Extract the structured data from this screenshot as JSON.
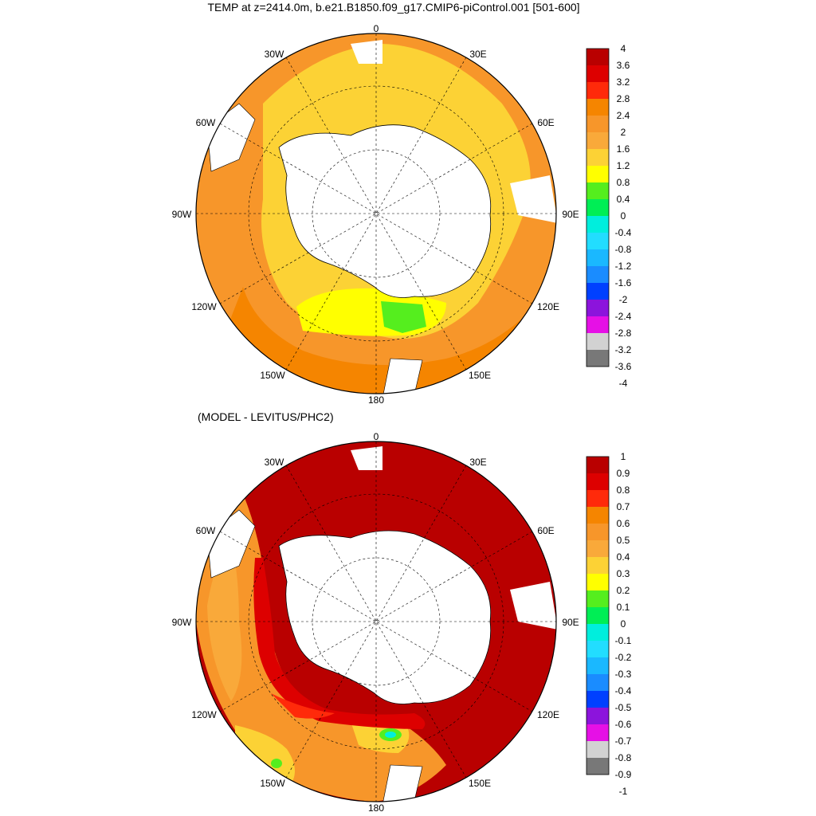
{
  "top_panel": {
    "title": "TEMP at z=2414.0m, b.e21.B1850.f09_g17.CMIP6-piControl.001 [501-600]",
    "lon_labels": [
      "0",
      "30E",
      "60E",
      "90E",
      "120E",
      "150E",
      "180",
      "150W",
      "120W",
      "90W",
      "60W",
      "30W"
    ],
    "colorbar": {
      "labels": [
        "4",
        "3.6",
        "3.2",
        "2.8",
        "2.4",
        "2",
        "1.6",
        "1.2",
        "0.8",
        "0.4",
        "0",
        "-0.4",
        "-0.8",
        "-1.2",
        "-1.6",
        "-2",
        "-2.4",
        "-2.8",
        "-3.2",
        "-3.6",
        "-4"
      ]
    }
  },
  "bottom_panel": {
    "title": "(MODEL - LEVITUS/PHC2)",
    "lon_labels": [
      "0",
      "30E",
      "60E",
      "90E",
      "120E",
      "150E",
      "180",
      "150W",
      "120W",
      "90W",
      "60W",
      "30W"
    ],
    "colorbar": {
      "labels": [
        "1",
        "0.9",
        "0.8",
        "0.7",
        "0.6",
        "0.5",
        "0.4",
        "0.3",
        "0.2",
        "0.1",
        "0",
        "-0.1",
        "-0.2",
        "-0.3",
        "-0.4",
        "-0.5",
        "-0.6",
        "-0.7",
        "-0.8",
        "-0.9",
        "-1"
      ]
    }
  },
  "colors": {
    "palette_top_to_bottom": [
      "#b90000",
      "#dd0000",
      "#ff2a0a",
      "#f58500",
      "#f7962a",
      "#f9a93a",
      "#fcd235",
      "#ffff00",
      "#55ee1e",
      "#00ee55",
      "#00eedd",
      "#22ddff",
      "#1ab8ff",
      "#1a8cff",
      "#0040ff",
      "#8c14dc",
      "#e610e6",
      "#d2d2d2",
      "#787878"
    ],
    "land": "#ffffff"
  }
}
